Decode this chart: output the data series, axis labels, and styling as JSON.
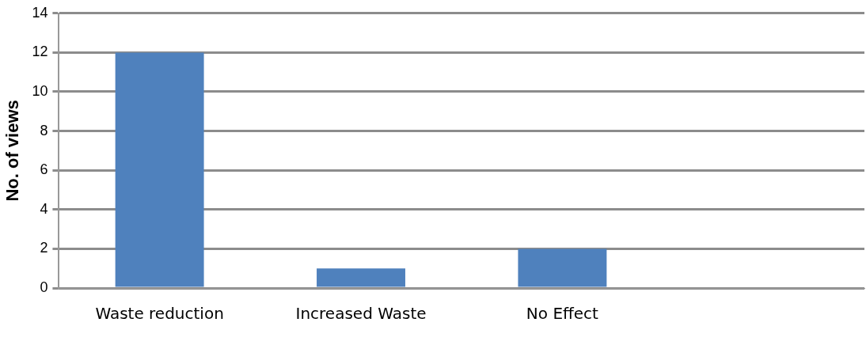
{
  "chart_data": {
    "type": "bar",
    "ylabel": "No. of views",
    "categories": [
      "Waste reduction",
      "Increased Waste",
      "No Effect",
      null
    ],
    "values": [
      12,
      1,
      2,
      null
    ],
    "color": "#4f81bd",
    "ylim": [
      0,
      14
    ],
    "yticks": [
      0,
      2,
      4,
      6,
      8,
      10,
      12,
      14
    ],
    "grid": "y",
    "legend": false
  }
}
